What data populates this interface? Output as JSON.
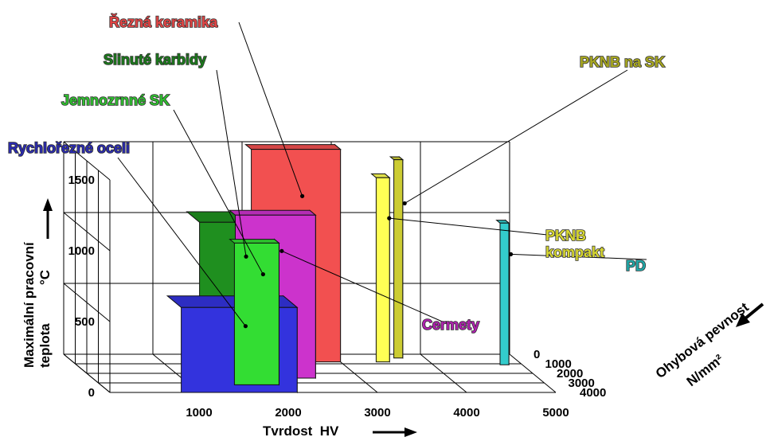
{
  "chart_data": {
    "type": "bar3d",
    "title": "",
    "xlabel": "Tvrdost  HV",
    "ylabel_line1": "Maximální pracovní",
    "ylabel_line2": "teplota",
    "ylabel_unit": "°C",
    "zlabel_line1": "Ohybová pevnost",
    "zlabel_unit": "N/mm²",
    "x_ticks": [
      "1000",
      "2000",
      "3000",
      "4000",
      "5000"
    ],
    "y_ticks": [
      "0",
      "500",
      "1000",
      "1500"
    ],
    "z_ticks": [
      "0",
      "1000",
      "2000",
      "3000",
      "4000"
    ],
    "xlim": [
      0,
      5000
    ],
    "ylim": [
      0,
      1500
    ],
    "zlim": [
      0,
      4000
    ],
    "series": [
      {
        "name": "Rychlořezné oceli",
        "color": "#3333dd",
        "label_color": "#2a2ab0",
        "hardness": [
          800,
          2100
        ],
        "temperature": 600,
        "strength": [
          2800,
          4000
        ]
      },
      {
        "name": "Jemnozrnné SK",
        "color": "#33dd33",
        "label_color": "#2fbf2f",
        "hardness": [
          1500,
          2000
        ],
        "temperature": 1000,
        "strength": [
          2800,
          3200
        ]
      },
      {
        "name": "Slinuté karbidy",
        "color": "#1f8f1f",
        "label_color": "#1b7a1b",
        "hardness": [
          1200,
          2100
        ],
        "temperature": 1100,
        "strength": [
          1400,
          2500
        ]
      },
      {
        "name": "Cermety",
        "color": "#cc33cc",
        "label_color": "#b020b0",
        "hardness": [
          1600,
          2500
        ],
        "temperature": 1150,
        "strength": [
          2000,
          2500
        ]
      },
      {
        "name": "Řezná keramika",
        "color": "#f25050",
        "label_color": "#e24545",
        "hardness": [
          2000,
          3000
        ],
        "temperature": 1500,
        "strength": [
          300,
          800
        ]
      },
      {
        "name": "PKNB na SK",
        "color": "#cccc33",
        "label_color": "#a8a820",
        "hardness": [
          3650,
          3750
        ],
        "temperature": 1400,
        "strength": [
          100,
          400
        ]
      },
      {
        "name": "PKNB\nkompakt",
        "color": "#ffff55",
        "label_color": "#d8d830",
        "hardness": [
          3400,
          3550
        ],
        "temperature": 1300,
        "strength": [
          400,
          800
        ]
      },
      {
        "name": "PD",
        "color": "#33cccc",
        "label_color": "#20a8a8",
        "hardness": [
          4750,
          4850
        ],
        "temperature": 1000,
        "strength": [
          800,
          1100
        ]
      }
    ]
  }
}
